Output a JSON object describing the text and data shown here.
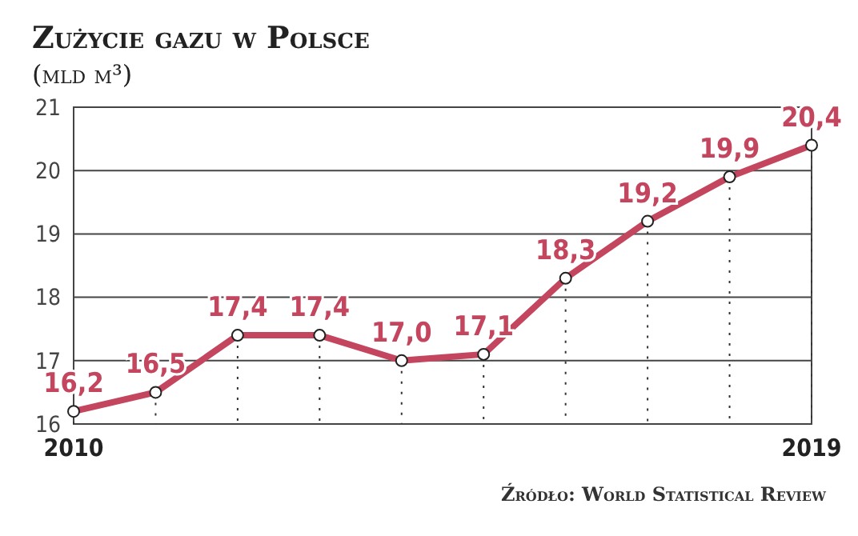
{
  "chart_data": {
    "type": "line",
    "title": "Zużycie gazu w Polsce",
    "subtitle": "(mld m³)",
    "x": [
      2010,
      2011,
      2012,
      2013,
      2014,
      2015,
      2016,
      2017,
      2018,
      2019
    ],
    "series": [
      {
        "color": "#c4455e",
        "values": [
          16.2,
          16.5,
          17.4,
          17.4,
          17.0,
          17.1,
          18.3,
          19.2,
          19.9,
          20.4
        ],
        "value_labels": [
          "16,2",
          "16,5",
          "17,4",
          "17,4",
          "17,0",
          "17,1",
          "18,3",
          "19,2",
          "19,9",
          "20,4"
        ]
      }
    ],
    "xlim": [
      2010,
      2019
    ],
    "xticks": [
      2010,
      2019
    ],
    "ylim": [
      16,
      21
    ],
    "yticks": [
      16,
      17,
      18,
      19,
      20,
      21
    ],
    "grid": "y",
    "marker": "circle",
    "line_style": "solid",
    "annotations": [
      "Źródło: World Statistical Review"
    ]
  }
}
